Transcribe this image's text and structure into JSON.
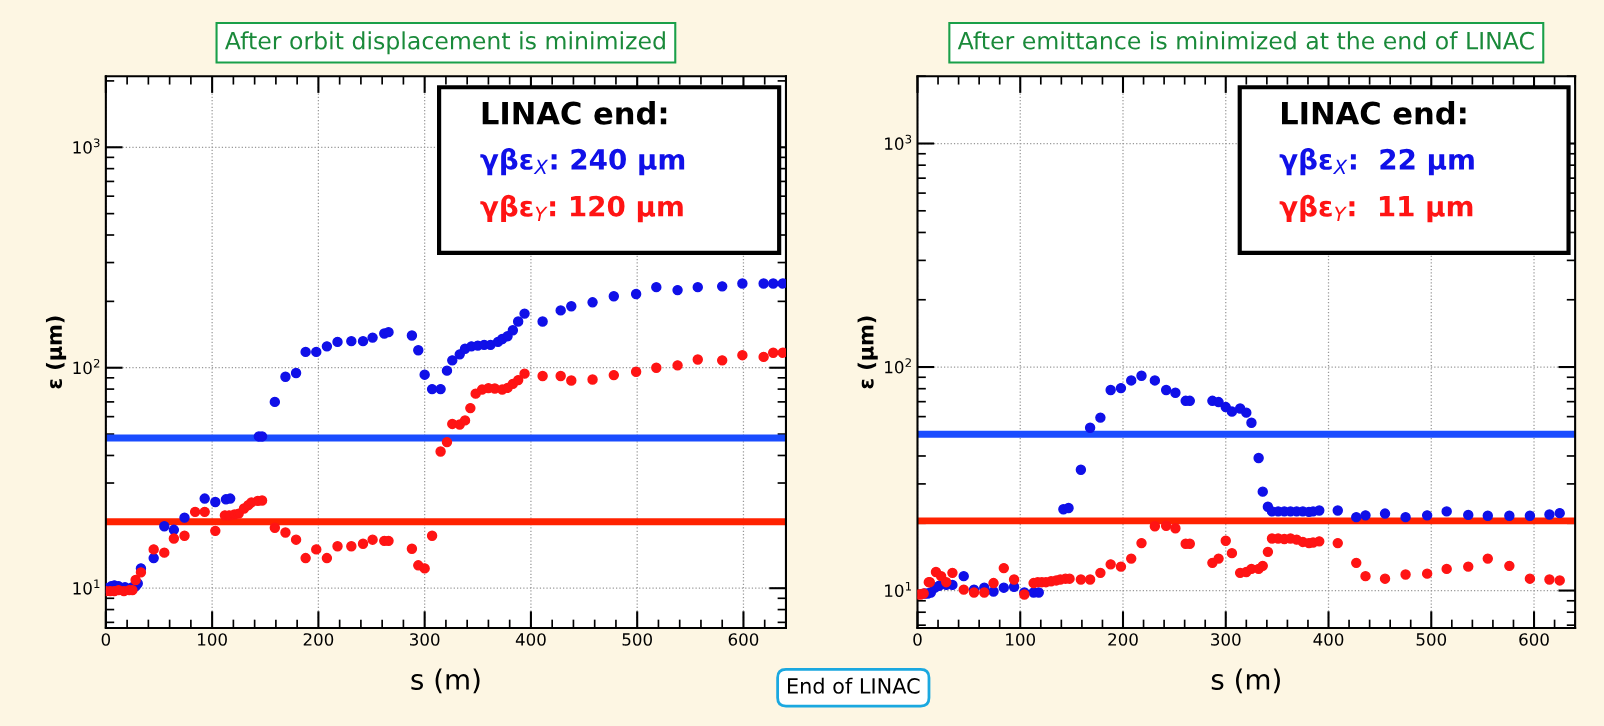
{
  "chart_data": [
    {
      "type": "scatter",
      "title": "After orbit displacement is minimized",
      "xlabel": "s (m)",
      "ylabel": "ε (μm)",
      "log": "y",
      "grid": true,
      "legend": false,
      "marker": "circle",
      "xlim": [
        0,
        640
      ],
      "xticks": [
        0,
        100,
        200,
        300,
        400,
        500,
        600
      ],
      "ylim": [
        6.6,
        2100
      ],
      "yticks": [
        {
          "value": 10,
          "label": "10$^{1}$"
        },
        {
          "value": 100,
          "label": "10$^{2}$"
        },
        {
          "value": 1000,
          "label": "10$^{3}$"
        }
      ],
      "ref_lines": [
        {
          "axis": "y",
          "value": 48,
          "label": null,
          "color": "#1a4cff"
        },
        {
          "axis": "y",
          "value": 20,
          "label": null,
          "color": "#ff2200"
        }
      ],
      "annotations": [
        "LINAC end:",
        "γβε$_{X}$: 240 μm",
        "γβε$_{Y}$: 120 μm",
        "End of LINAC"
      ],
      "series": [
        {
          "color": "#1010e8",
          "x": [
            0,
            5,
            8,
            12,
            18,
            25,
            28,
            30,
            33,
            45,
            55,
            64,
            74,
            93,
            103,
            113,
            117,
            144,
            147,
            159,
            169,
            179,
            188,
            198,
            208,
            218,
            231,
            242,
            251,
            262,
            266,
            288,
            294,
            300,
            307,
            315,
            321,
            326,
            333,
            338,
            344,
            350,
            356,
            362,
            369,
            373,
            378,
            383,
            388,
            394,
            411,
            428,
            438,
            458,
            478,
            499,
            518,
            538,
            557,
            580,
            599,
            619,
            628,
            637
          ],
          "values": [
            10.0,
            10.2,
            10.3,
            10.2,
            10.1,
            10.1,
            10.2,
            10.5,
            12.3,
            13.7,
            19.1,
            18.4,
            20.9,
            25.5,
            24.6,
            25.3,
            25.5,
            48.8,
            48.8,
            70,
            91,
            94.6,
            118,
            118,
            125,
            131,
            132,
            132,
            137,
            143,
            145,
            140,
            120,
            93,
            80,
            80,
            97,
            108,
            115,
            122,
            125,
            126,
            127,
            127,
            131,
            135,
            139,
            148,
            162,
            176,
            162,
            182,
            190,
            198,
            211,
            216,
            232,
            225,
            232,
            234,
            241,
            241,
            241,
            241
          ]
        },
        {
          "color": "#ff1414",
          "x": [
            0,
            4,
            8,
            12,
            17,
            22,
            25,
            28,
            33,
            45,
            55,
            64,
            74,
            84,
            93,
            103,
            112,
            116,
            121,
            125,
            130,
            134,
            137,
            143,
            147,
            159,
            169,
            179,
            188,
            198,
            208,
            218,
            231,
            242,
            251,
            262,
            266,
            288,
            294,
            300,
            307,
            315,
            321,
            326,
            333,
            338,
            343,
            348,
            354,
            360,
            366,
            373,
            378,
            383,
            388,
            394,
            411,
            428,
            438,
            458,
            478,
            499,
            518,
            538,
            557,
            580,
            599,
            619,
            628,
            637
          ],
          "values": [
            9.7,
            9.7,
            9.7,
            9.8,
            9.7,
            9.8,
            9.8,
            10.9,
            11.8,
            15.0,
            14.5,
            16.8,
            17.3,
            22.2,
            22.2,
            18.2,
            21.4,
            21.4,
            21.6,
            21.8,
            23.0,
            23.8,
            24.5,
            24.9,
            25.0,
            18.8,
            17.9,
            16.6,
            13.7,
            15.0,
            13.7,
            15.5,
            15.5,
            15.9,
            16.6,
            16.4,
            16.4,
            15.1,
            12.7,
            12.3,
            17.3,
            41.7,
            46,
            55.6,
            55.3,
            57.7,
            65.6,
            76.3,
            79.6,
            80.8,
            80.5,
            79.6,
            81,
            84.5,
            87.9,
            94,
            91.7,
            91.7,
            87.5,
            88.4,
            92.6,
            95.9,
            100,
            102.5,
            109,
            108,
            114,
            112,
            117,
            117
          ]
        }
      ]
    },
    {
      "type": "scatter",
      "title": "After emittance is minimized at the end of LINAC",
      "xlabel": "s (m)",
      "ylabel": "ε (μm)",
      "log": "y",
      "grid": true,
      "legend": false,
      "marker": "circle",
      "xlim": [
        0,
        640
      ],
      "xticks": [
        0,
        100,
        200,
        300,
        400,
        500,
        600
      ],
      "ylim": [
        6.8,
        2000
      ],
      "yticks": [
        {
          "value": 10,
          "label": "10$^{1}$"
        },
        {
          "value": 100,
          "label": "10$^{2}$"
        },
        {
          "value": 1000,
          "label": "10$^{3}$"
        }
      ],
      "ref_lines": [
        {
          "axis": "y",
          "value": 50,
          "label": null,
          "color": "#1a4cff"
        },
        {
          "axis": "y",
          "value": 20.5,
          "label": null,
          "color": "#ff2200"
        }
      ],
      "annotations": [
        "LINAC end:",
        "γβε$_{X}$:  22 μm",
        "γβε$_{Y}$:  11 μm"
      ],
      "series": [
        {
          "color": "#1010e8",
          "x": [
            7,
            10,
            13,
            17,
            21,
            28,
            34,
            45,
            55,
            65,
            74,
            84,
            94,
            104,
            113,
            118,
            142,
            147,
            159,
            168,
            178,
            188,
            198,
            208,
            218,
            231,
            242,
            251,
            261,
            265,
            287,
            293,
            300,
            306,
            314,
            320,
            325,
            332,
            336,
            341,
            345,
            351,
            357,
            363,
            369,
            375,
            381,
            385,
            391,
            409,
            427,
            436,
            455,
            475,
            496,
            515,
            536,
            555,
            576,
            596,
            615,
            625
          ],
          "values": [
            9.7,
            9.7,
            9.8,
            10.3,
            10.5,
            10.6,
            10.6,
            11.6,
            10.1,
            10.3,
            9.9,
            10.3,
            10.4,
            9.8,
            9.8,
            9.8,
            23.1,
            23.4,
            34.7,
            53.5,
            59.4,
            78.9,
            80.5,
            87.1,
            91.4,
            87.1,
            78.9,
            76.7,
            70.6,
            70.6,
            70.6,
            69.7,
            66.2,
            63.2,
            65.2,
            62.5,
            56.3,
            39.2,
            27.7,
            23.7,
            22.6,
            22.6,
            22.6,
            22.6,
            22.6,
            22.6,
            22.5,
            22.6,
            22.8,
            22.8,
            21.3,
            21.7,
            22.1,
            21.3,
            21.7,
            22.6,
            21.8,
            21.6,
            21.6,
            21.6,
            21.9,
            22.2
          ]
        },
        {
          "color": "#ff1414",
          "x": [
            0,
            3,
            6,
            11,
            12,
            18,
            23,
            28,
            34,
            45,
            55,
            65,
            74,
            84,
            94,
            104,
            113,
            117,
            121,
            125,
            130,
            135,
            139,
            144,
            148,
            159,
            168,
            178,
            188,
            198,
            208,
            218,
            231,
            242,
            251,
            261,
            265,
            287,
            293,
            300,
            306,
            314,
            320,
            325,
            332,
            336,
            341,
            345,
            351,
            357,
            363,
            369,
            375,
            381,
            385,
            391,
            409,
            427,
            436,
            455,
            475,
            496,
            515,
            536,
            555,
            576,
            596,
            615,
            625
          ],
          "values": [
            9.6,
            9.6,
            9.7,
            10.9,
            10.9,
            12.1,
            11.6,
            10.9,
            12.0,
            10.1,
            9.8,
            9.8,
            10.8,
            12.6,
            11.2,
            9.6,
            10.8,
            10.9,
            10.9,
            10.9,
            11.0,
            11.1,
            11.2,
            11.3,
            11.3,
            11.2,
            11.2,
            12.0,
            13.1,
            12.8,
            13.9,
            16.3,
            19.4,
            19.5,
            19.0,
            16.2,
            16.2,
            13.3,
            13.9,
            16.7,
            14.7,
            12.0,
            12.1,
            12.5,
            12.5,
            12.9,
            14.9,
            17.1,
            17.1,
            17.0,
            17.1,
            16.9,
            16.5,
            16.3,
            16.4,
            16.6,
            16.3,
            13.3,
            11.6,
            11.3,
            11.8,
            11.9,
            12.5,
            12.8,
            13.9,
            12.9,
            11.3,
            11.2,
            11.1
          ]
        }
      ]
    }
  ]
}
